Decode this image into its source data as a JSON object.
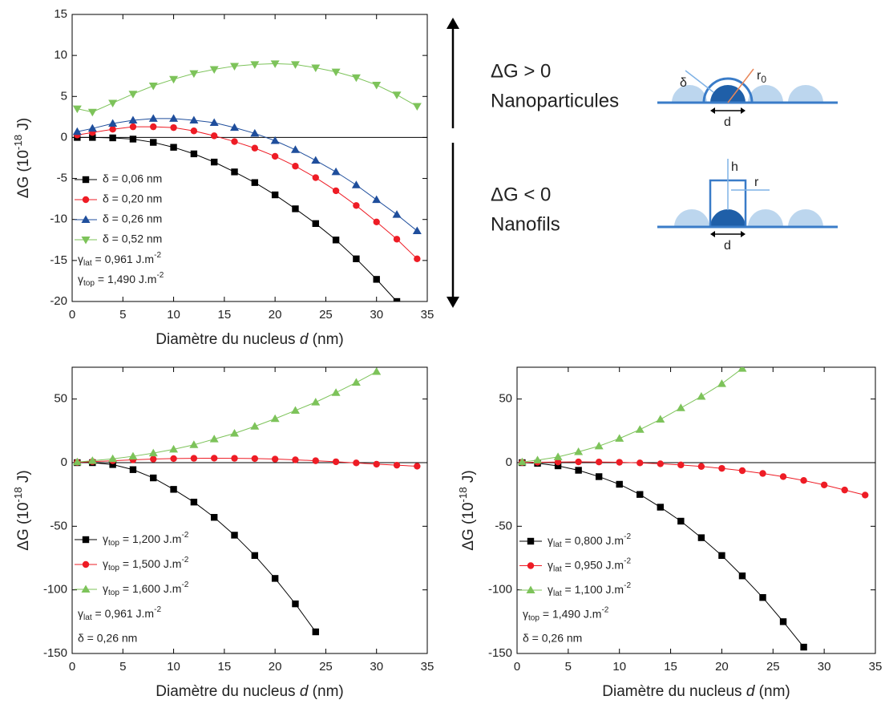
{
  "chart_data": [
    {
      "type": "line",
      "x_label": "Diamètre du nucleus d (nm)",
      "y_label": "ΔG (10-18 J)",
      "x": [
        0.5,
        2,
        4,
        6,
        8,
        10,
        12,
        14,
        16,
        18,
        20,
        22,
        24,
        26,
        28,
        30,
        32,
        34
      ],
      "xlim": [
        0,
        35
      ],
      "ylim": [
        -20,
        15
      ],
      "xticks": [
        0,
        5,
        10,
        15,
        20,
        25,
        30,
        35
      ],
      "yticks": [
        -20,
        -15,
        -10,
        -5,
        0,
        5,
        10,
        15
      ],
      "legend": "lower left",
      "series": [
        {
          "name": "δ = 0,06 nm",
          "color": "#000000",
          "marker": "square",
          "values": [
            0,
            0,
            -0.05,
            -0.2,
            -0.6,
            -1.2,
            -2,
            -3,
            -4.2,
            -5.5,
            -7,
            -8.7,
            -10.5,
            -12.5,
            -14.8,
            -17.3,
            -20,
            null
          ]
        },
        {
          "name": "δ = 0,20 nm",
          "color": "#ee1c25",
          "marker": "circle",
          "values": [
            0.3,
            0.6,
            1,
            1.3,
            1.3,
            1.2,
            0.8,
            0.2,
            -0.5,
            -1.3,
            -2.3,
            -3.5,
            -4.9,
            -6.5,
            -8.3,
            -10.3,
            -12.4,
            -14.8
          ]
        },
        {
          "name": "δ = 0,26 nm",
          "color": "#1f4e9c",
          "marker": "triangle-up",
          "values": [
            0.7,
            1.1,
            1.7,
            2.1,
            2.3,
            2.3,
            2.1,
            1.8,
            1.2,
            0.5,
            -0.4,
            -1.5,
            -2.8,
            -4.2,
            -5.8,
            -7.6,
            -9.4,
            -11.4
          ]
        },
        {
          "name": "δ = 0,52 nm",
          "color": "#7dc35a",
          "marker": "triangle-down",
          "values": [
            3.5,
            3.1,
            4.2,
            5.3,
            6.3,
            7.1,
            7.8,
            8.3,
            8.7,
            8.9,
            9,
            8.9,
            8.5,
            8,
            7.3,
            6.4,
            5.2,
            3.8
          ]
        }
      ],
      "annotations": [
        "γlat = 0,961 J.m-2",
        "γtop = 1,490 J.m-2"
      ]
    },
    {
      "type": "line",
      "x_label": "Diamètre du nucleus d (nm)",
      "y_label": "ΔG (10-18 J)",
      "x": [
        0.5,
        2,
        4,
        6,
        8,
        10,
        12,
        14,
        16,
        18,
        20,
        22,
        24,
        26,
        28,
        30,
        32,
        34
      ],
      "xlim": [
        0,
        35
      ],
      "ylim": [
        -150,
        75
      ],
      "xticks": [
        0,
        5,
        10,
        15,
        20,
        25,
        30,
        35
      ],
      "yticks": [
        -150,
        -100,
        -50,
        0,
        50
      ],
      "legend": "lower left",
      "series": [
        {
          "name": "γtop = 1,200 J.m-2",
          "color": "#000000",
          "marker": "square",
          "values": [
            0,
            0,
            -1.5,
            -5.5,
            -12,
            -21,
            -31,
            -43,
            -57,
            -73,
            -91,
            -111,
            -133,
            null,
            null,
            null,
            null,
            null
          ]
        },
        {
          "name": "γtop = 1,500 J.m-2",
          "color": "#ee1c25",
          "marker": "circle",
          "values": [
            0.2,
            0.8,
            1.5,
            2.2,
            2.8,
            3.2,
            3.4,
            3.5,
            3.4,
            3.2,
            2.8,
            2.2,
            1.5,
            0.7,
            -0.2,
            -1.2,
            -2,
            -2.8
          ]
        },
        {
          "name": "γtop = 1,600 J.m-2",
          "color": "#7dc35a",
          "marker": "triangle-up",
          "values": [
            0.5,
            1.5,
            3,
            5,
            7.5,
            10.5,
            14,
            18.5,
            23,
            28.5,
            34.5,
            41,
            47.5,
            55,
            63,
            71.5,
            null,
            null
          ]
        }
      ],
      "annotations": [
        "γlat = 0,961 J.m-2",
        "δ = 0,26 nm"
      ]
    },
    {
      "type": "line",
      "x_label": "Diamètre du nucleus d (nm)",
      "y_label": "ΔG (10-18 J)",
      "x": [
        0.5,
        2,
        4,
        6,
        8,
        10,
        12,
        14,
        16,
        18,
        20,
        22,
        24,
        26,
        28,
        30,
        32,
        34
      ],
      "xlim": [
        0,
        35
      ],
      "ylim": [
        -150,
        75
      ],
      "xticks": [
        0,
        5,
        10,
        15,
        20,
        25,
        30,
        35
      ],
      "yticks": [
        -150,
        -100,
        -50,
        0,
        50
      ],
      "legend": "lower left",
      "series": [
        {
          "name": "γlat = 0,800 J.m-2",
          "color": "#000000",
          "marker": "square",
          "values": [
            0,
            -0.5,
            -2.5,
            -6,
            -11,
            -17,
            -25,
            -35,
            -46,
            -59,
            -73,
            -89,
            -106,
            -125,
            -145,
            null,
            null,
            null
          ]
        },
        {
          "name": "γlat = 0,950 J.m-2",
          "color": "#ee1c25",
          "marker": "circle",
          "values": [
            0.1,
            0.3,
            0.5,
            0.6,
            0.5,
            0.3,
            -0.2,
            -0.9,
            -1.8,
            -3,
            -4.5,
            -6.3,
            -8.5,
            -11,
            -14,
            -17.5,
            -21.5,
            -25.5
          ]
        },
        {
          "name": "γlat = 1,100 J.m-2",
          "color": "#7dc35a",
          "marker": "triangle-up",
          "values": [
            0.5,
            2,
            4.5,
            8.5,
            13,
            19,
            26,
            34,
            43,
            52,
            62,
            74,
            null,
            null,
            null,
            null,
            null,
            null
          ]
        }
      ],
      "annotations": [
        "γtop = 1,490 J.m-2",
        "δ = 0,26 nm"
      ]
    }
  ],
  "diagram": {
    "nanoparticles": {
      "title": "ΔG > 0",
      "label": "Nanoparticules",
      "delta": "δ",
      "radius": "r0",
      "diameter": "d"
    },
    "nanowires": {
      "title": "ΔG < 0",
      "label": "Nanofils",
      "height": "h",
      "radius": "r",
      "diameter": "d"
    }
  }
}
